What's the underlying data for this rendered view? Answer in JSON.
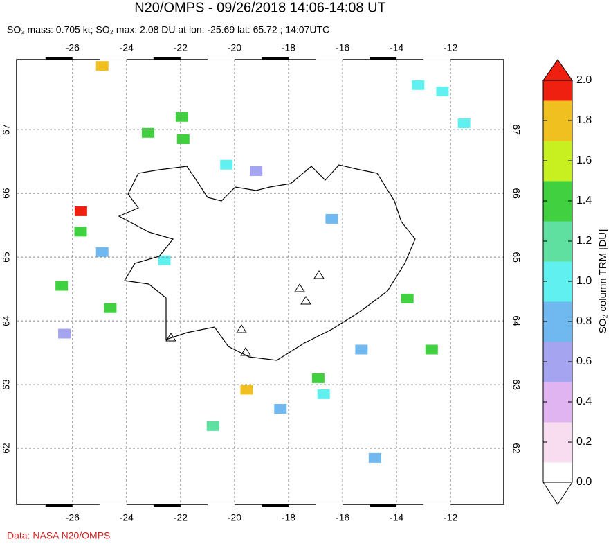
{
  "chart_data": {
    "type": "map",
    "title": "N20/OMPS - 09/26/2018 14:06-14:08 UT",
    "subtitle": "SO₂ mass: 0.705 kt; SO₂ max: 2.08 DU at lon: -25.69 lat: 65.72 ; 14:07UTC",
    "credit": "Data: NASA N20/OMPS",
    "xlim": [
      -28.07,
      -10.03
    ],
    "ylim": [
      61.12,
      68.1
    ],
    "xticks": [
      -26,
      -24,
      -22,
      -20,
      -18,
      -16,
      -14,
      -12
    ],
    "yticks": [
      62,
      63,
      64,
      65,
      66,
      67
    ],
    "grid": true,
    "colorbar": {
      "label": "SO₂ column TRM [DU]",
      "clim": [
        0,
        2
      ],
      "ticks": [
        {
          "value": 0,
          "label": "0.0"
        },
        {
          "value": 0.2,
          "label": "0.2"
        },
        {
          "value": 0.4,
          "label": "0.4"
        },
        {
          "value": 0.6,
          "label": "0.6"
        },
        {
          "value": 0.8,
          "label": "0.8"
        },
        {
          "value": 1,
          "label": "1.0"
        },
        {
          "value": 1.2,
          "label": "1.2"
        },
        {
          "value": 1.4,
          "label": "1.4"
        },
        {
          "value": 1.6,
          "label": "1.6"
        },
        {
          "value": 1.8,
          "label": "1.8"
        },
        {
          "value": 2,
          "label": "2.0"
        }
      ],
      "colormap": [
        "#ffffff",
        "#f8dcf0",
        "#e0b4f0",
        "#a4a4f0",
        "#70b8f0",
        "#60f0f0",
        "#60e0a0",
        "#40d040",
        "#c8f020",
        "#f0c020",
        "#f02010"
      ]
    },
    "pixels": {
      "lon": [
        -25.69,
        -24.9,
        -19.55,
        -25.7,
        -21.9,
        -21.95,
        -23.2,
        -26.4,
        -13.2,
        -12.3,
        -11.5,
        -16.9,
        -12.7,
        -20.3,
        -24.6,
        -18.3,
        -15.3,
        -20.8,
        -24.9,
        -13.6,
        -16.4,
        -22.6,
        -26.3,
        -16.7,
        -19.2,
        -14.8
      ],
      "lat": [
        65.72,
        68.0,
        62.92,
        65.4,
        66.85,
        67.2,
        66.95,
        64.55,
        67.7,
        67.6,
        67.1,
        63.1,
        63.55,
        66.45,
        64.2,
        62.62,
        63.55,
        62.35,
        65.08,
        64.35,
        65.6,
        64.95,
        63.8,
        62.85,
        66.35,
        61.85
      ],
      "values": [
        2.08,
        1.7,
        1.75,
        1.4,
        1.3,
        1.35,
        1.4,
        1.45,
        0.9,
        0.95,
        1.05,
        1.4,
        1.3,
        0.95,
        1.45,
        0.85,
        0.75,
        1.2,
        0.8,
        1.3,
        0.7,
        0.95,
        0.65,
        1.0,
        0.6,
        0.75
      ]
    }
  }
}
